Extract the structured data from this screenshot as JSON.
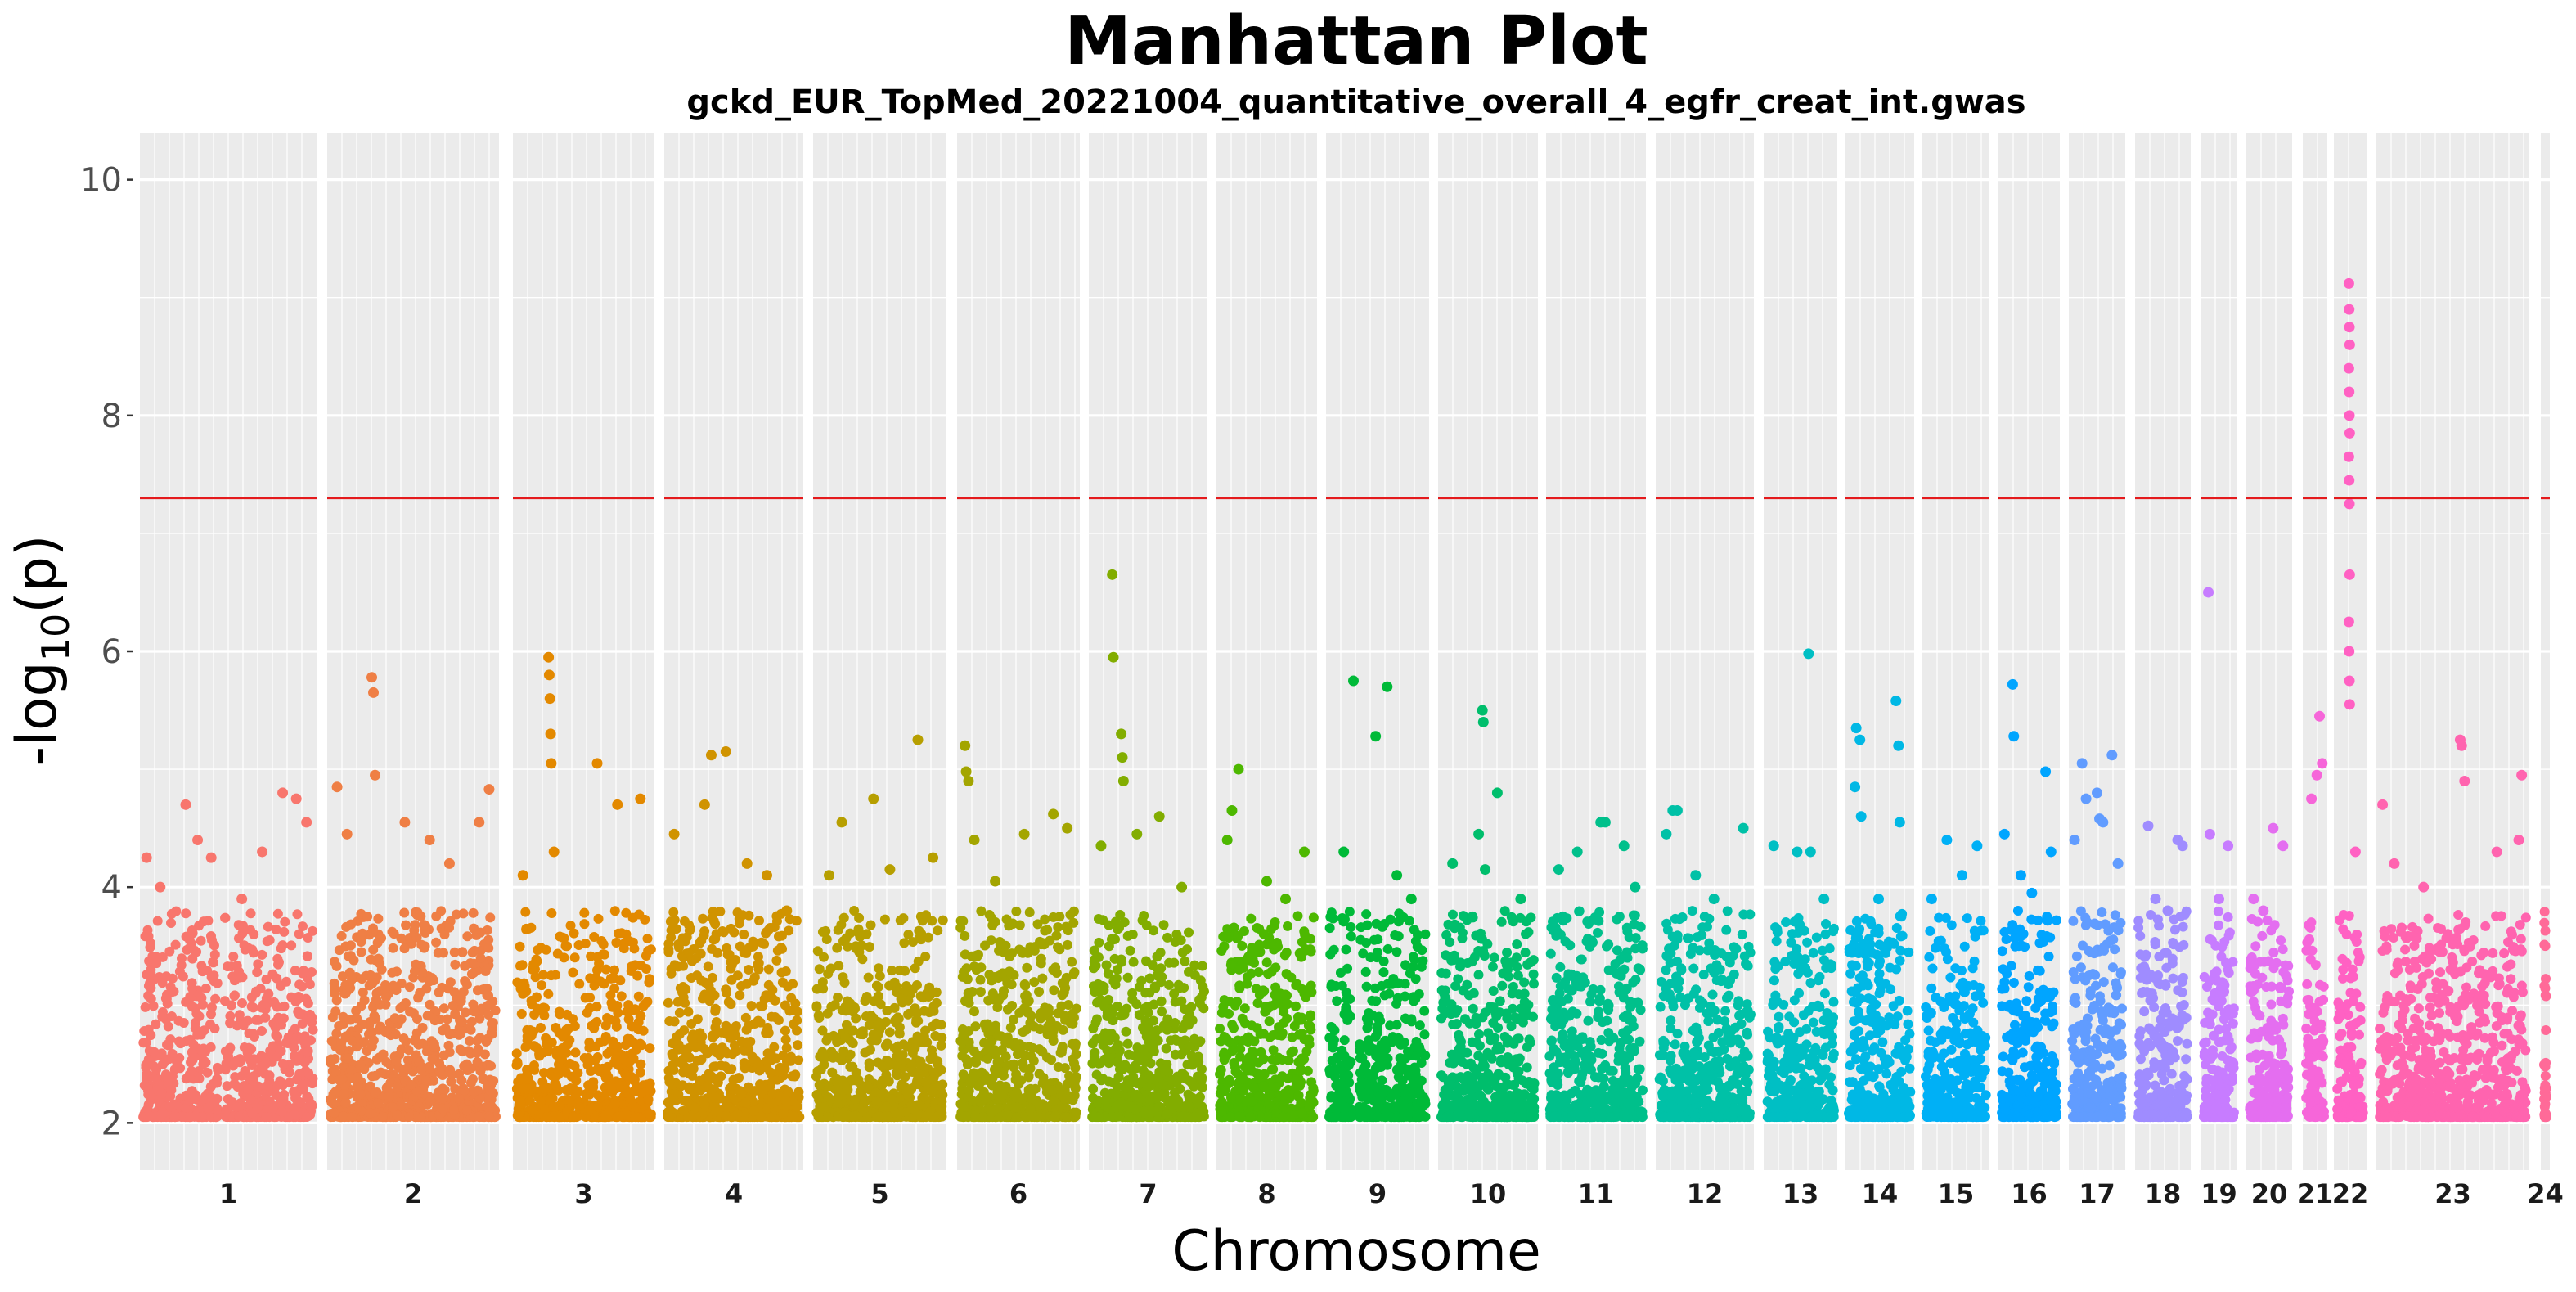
{
  "chart_data": {
    "type": "scatter",
    "title": "Manhattan Plot",
    "subtitle": "gckd_EUR_TopMed_20221004_quantitative_overall_4_egfr_creat_int.gwas",
    "xlabel": "Chromosome",
    "ylabel": {
      "main": "-log",
      "sub": "10",
      "tail": "(p)"
    },
    "ylim": [
      1.6,
      10.4
    ],
    "yticks": [
      2,
      4,
      6,
      8,
      10
    ],
    "significance_line": 7.3,
    "significance_color": "#e41a1c",
    "panel_background": "#ebebeb",
    "grid": true,
    "chromosomes": [
      {
        "label": "1",
        "color": "#F8766D",
        "range": [
          171,
          387
        ],
        "gaps": [
          [
            0.44,
            0.48
          ]
        ],
        "peaks": [
          [
            0.02,
            4.25
          ],
          [
            0.1,
            4.0
          ],
          [
            0.25,
            4.7
          ],
          [
            0.32,
            4.4
          ],
          [
            0.4,
            4.25
          ],
          [
            0.58,
            3.9
          ],
          [
            0.7,
            4.3
          ],
          [
            0.82,
            4.8
          ],
          [
            0.9,
            4.75
          ],
          [
            0.96,
            4.55
          ]
        ]
      },
      {
        "label": "2",
        "color": "#EF7F45",
        "range": [
          400,
          610
        ],
        "gaps": [],
        "peaks": [
          [
            0.04,
            4.85
          ],
          [
            0.1,
            4.45
          ],
          [
            0.25,
            5.78
          ],
          [
            0.26,
            5.65
          ],
          [
            0.27,
            4.95
          ],
          [
            0.45,
            4.55
          ],
          [
            0.6,
            4.4
          ],
          [
            0.72,
            4.2
          ],
          [
            0.9,
            4.55
          ],
          [
            0.96,
            4.83
          ]
        ]
      },
      {
        "label": "3",
        "color": "#E38900",
        "range": [
          627,
          800
        ],
        "gaps": [
          [
            0.47,
            0.5
          ]
        ],
        "peaks": [
          [
            0.05,
            4.1
          ],
          [
            0.24,
            5.95
          ],
          [
            0.245,
            5.8
          ],
          [
            0.25,
            5.6
          ],
          [
            0.255,
            5.3
          ],
          [
            0.26,
            5.05
          ],
          [
            0.28,
            4.3
          ],
          [
            0.6,
            5.05
          ],
          [
            0.75,
            4.7
          ],
          [
            0.92,
            4.75
          ]
        ]
      },
      {
        "label": "4",
        "color": "#D09300",
        "range": [
          812,
          982
        ],
        "gaps": [],
        "peaks": [
          [
            0.05,
            4.45
          ],
          [
            0.28,
            4.7
          ],
          [
            0.33,
            5.12
          ],
          [
            0.44,
            5.15
          ],
          [
            0.6,
            4.2
          ],
          [
            0.75,
            4.1
          ],
          [
            0.9,
            3.8
          ]
        ]
      },
      {
        "label": "5",
        "color": "#B79F00",
        "range": [
          994,
          1157
        ],
        "gaps": [],
        "peaks": [
          [
            0.1,
            4.1
          ],
          [
            0.2,
            4.55
          ],
          [
            0.45,
            4.75
          ],
          [
            0.58,
            4.15
          ],
          [
            0.8,
            5.25
          ],
          [
            0.92,
            4.25
          ]
        ]
      },
      {
        "label": "6",
        "color": "#A3A500",
        "range": [
          1170,
          1320
        ],
        "gaps": [],
        "peaks": [
          [
            0.04,
            5.2
          ],
          [
            0.05,
            4.98
          ],
          [
            0.07,
            4.9
          ],
          [
            0.12,
            4.4
          ],
          [
            0.3,
            4.05
          ],
          [
            0.55,
            4.45
          ],
          [
            0.8,
            4.62
          ],
          [
            0.92,
            4.5
          ]
        ]
      },
      {
        "label": "7",
        "color": "#82AD00",
        "range": [
          1331,
          1476
        ],
        "gaps": [],
        "peaks": [
          [
            0.08,
            4.35
          ],
          [
            0.18,
            6.65
          ],
          [
            0.19,
            5.95
          ],
          [
            0.26,
            5.3
          ],
          [
            0.27,
            5.1
          ],
          [
            0.28,
            4.9
          ],
          [
            0.4,
            4.45
          ],
          [
            0.6,
            4.6
          ],
          [
            0.8,
            4.0
          ]
        ]
      },
      {
        "label": "8",
        "color": "#4DB800",
        "range": [
          1487,
          1610
        ],
        "gaps": [],
        "peaks": [
          [
            0.08,
            4.4
          ],
          [
            0.13,
            4.65
          ],
          [
            0.2,
            5.0
          ],
          [
            0.5,
            4.05
          ],
          [
            0.7,
            3.9
          ],
          [
            0.9,
            4.3
          ]
        ]
      },
      {
        "label": "9",
        "color": "#00BA38",
        "range": [
          1621,
          1747
        ],
        "gaps": [
          [
            0.24,
            0.31
          ]
        ],
        "peaks": [
          [
            0.25,
            5.75
          ],
          [
            0.15,
            4.3
          ],
          [
            0.48,
            5.28
          ],
          [
            0.6,
            5.7
          ],
          [
            0.7,
            4.1
          ],
          [
            0.85,
            3.9
          ]
        ]
      },
      {
        "label": "10",
        "color": "#00BE6C",
        "range": [
          1758,
          1880
        ],
        "gaps": [],
        "peaks": [
          [
            0.12,
            4.2
          ],
          [
            0.4,
            4.45
          ],
          [
            0.44,
            5.5
          ],
          [
            0.45,
            5.4
          ],
          [
            0.47,
            4.15
          ],
          [
            0.6,
            4.8
          ],
          [
            0.85,
            3.9
          ]
        ]
      },
      {
        "label": "11",
        "color": "#00C08B",
        "range": [
          1890,
          2012
        ],
        "gaps": [],
        "peaks": [
          [
            0.1,
            4.15
          ],
          [
            0.3,
            4.3
          ],
          [
            0.55,
            4.55
          ],
          [
            0.6,
            4.55
          ],
          [
            0.8,
            4.35
          ],
          [
            0.92,
            4.0
          ]
        ]
      },
      {
        "label": "12",
        "color": "#00C1A7",
        "range": [
          2024,
          2144
        ],
        "gaps": [],
        "peaks": [
          [
            0.08,
            4.45
          ],
          [
            0.15,
            4.65
          ],
          [
            0.2,
            4.65
          ],
          [
            0.4,
            4.1
          ],
          [
            0.6,
            3.9
          ],
          [
            0.92,
            4.5
          ]
        ]
      },
      {
        "label": "13",
        "color": "#00BFC4",
        "range": [
          2156,
          2246
        ],
        "gaps": [],
        "peaks": [
          [
            0.1,
            4.35
          ],
          [
            0.45,
            4.3
          ],
          [
            0.62,
            5.98
          ],
          [
            0.65,
            4.3
          ],
          [
            0.85,
            3.9
          ]
        ]
      },
      {
        "label": "14",
        "color": "#00B8E5",
        "range": [
          2256,
          2340
        ],
        "gaps": [],
        "peaks": [
          [
            0.1,
            4.85
          ],
          [
            0.12,
            5.35
          ],
          [
            0.18,
            5.25
          ],
          [
            0.2,
            4.6
          ],
          [
            0.48,
            3.9
          ],
          [
            0.76,
            5.58
          ],
          [
            0.8,
            5.2
          ],
          [
            0.82,
            4.55
          ]
        ]
      },
      {
        "label": "15",
        "color": "#00B0F6",
        "range": [
          2350,
          2432
        ],
        "gaps": [],
        "peaks": [
          [
            0.1,
            3.9
          ],
          [
            0.35,
            4.4
          ],
          [
            0.6,
            4.1
          ],
          [
            0.85,
            4.35
          ]
        ]
      },
      {
        "label": "16",
        "color": "#00A5FF",
        "range": [
          2443,
          2518
        ],
        "gaps": [],
        "peaks": [
          [
            0.05,
            4.45
          ],
          [
            0.2,
            5.72
          ],
          [
            0.22,
            5.28
          ],
          [
            0.35,
            4.1
          ],
          [
            0.55,
            3.95
          ],
          [
            0.8,
            4.98
          ],
          [
            0.9,
            4.3
          ]
        ]
      },
      {
        "label": "17",
        "color": "#619CFF",
        "range": [
          2529,
          2598
        ],
        "gaps": [],
        "peaks": [
          [
            0.05,
            4.4
          ],
          [
            0.2,
            5.05
          ],
          [
            0.28,
            4.75
          ],
          [
            0.5,
            4.8
          ],
          [
            0.55,
            4.58
          ],
          [
            0.62,
            4.55
          ],
          [
            0.8,
            5.12
          ],
          [
            0.92,
            4.2
          ]
        ]
      },
      {
        "label": "18",
        "color": "#9F8CFF",
        "range": [
          2610,
          2678
        ],
        "gaps": [],
        "peaks": [
          [
            0.2,
            4.52
          ],
          [
            0.35,
            3.9
          ],
          [
            0.6,
            3.8
          ],
          [
            0.8,
            4.4
          ],
          [
            0.9,
            4.35
          ]
        ]
      },
      {
        "label": "19",
        "color": "#C77CFF",
        "range": [
          2690,
          2735
        ],
        "gaps": [],
        "peaks": [
          [
            0.15,
            6.5
          ],
          [
            0.2,
            4.45
          ],
          [
            0.5,
            3.9
          ],
          [
            0.8,
            4.35
          ]
        ]
      },
      {
        "label": "20",
        "color": "#E46EF0",
        "range": [
          2746,
          2802
        ],
        "gaps": [],
        "peaks": [
          [
            0.1,
            3.9
          ],
          [
            0.35,
            3.8
          ],
          [
            0.6,
            4.5
          ],
          [
            0.85,
            4.35
          ]
        ]
      },
      {
        "label": "21",
        "color": "#F666D9",
        "range": [
          2815,
          2845
        ],
        "gaps": [],
        "peaks": [
          [
            0.3,
            4.75
          ],
          [
            0.6,
            4.95
          ],
          [
            0.75,
            5.45
          ],
          [
            0.9,
            5.05
          ]
        ]
      },
      {
        "label": "22",
        "color": "#FF61C3",
        "range": [
          2853,
          2893
        ],
        "gaps": [],
        "peaks": [
          [
            0.45,
            9.12
          ],
          [
            0.46,
            8.9
          ],
          [
            0.47,
            8.75
          ],
          [
            0.48,
            8.6
          ],
          [
            0.45,
            8.4
          ],
          [
            0.46,
            8.2
          ],
          [
            0.47,
            8.0
          ],
          [
            0.48,
            7.85
          ],
          [
            0.45,
            7.65
          ],
          [
            0.46,
            7.45
          ],
          [
            0.47,
            7.25
          ],
          [
            0.48,
            6.65
          ],
          [
            0.45,
            6.25
          ],
          [
            0.46,
            6.0
          ],
          [
            0.47,
            5.75
          ],
          [
            0.48,
            5.55
          ],
          [
            0.7,
            4.3
          ]
        ]
      },
      {
        "label": "23",
        "color": "#FF64AF",
        "range": [
          2905,
          3092
        ],
        "gaps": [],
        "peaks": [
          [
            0.02,
            4.7
          ],
          [
            0.1,
            4.2
          ],
          [
            0.3,
            4.0
          ],
          [
            0.55,
            5.25
          ],
          [
            0.56,
            5.2
          ],
          [
            0.58,
            4.9
          ],
          [
            0.8,
            4.3
          ],
          [
            0.97,
            4.95
          ],
          [
            0.95,
            4.4
          ]
        ]
      },
      {
        "label": "24",
        "color": "#FF6A98",
        "range": [
          3106,
          3117
        ],
        "gaps": [],
        "peaks": []
      }
    ]
  }
}
